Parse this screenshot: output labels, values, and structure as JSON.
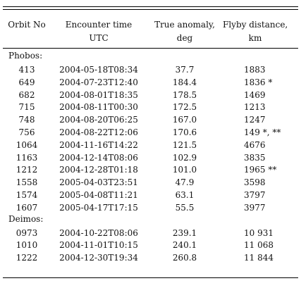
{
  "table": {
    "headers": {
      "orbit": "Orbit No",
      "time_line1": "Encounter time",
      "time_line2": "UTC",
      "anomaly_line1": "True anomaly,",
      "anomaly_line2": "deg",
      "distance_line1": "Flyby distance,",
      "distance_line2": "km"
    },
    "groups": [
      {
        "name": "Phobos:",
        "rows": [
          {
            "orbit": "413",
            "time": "2004-05-18T08:34",
            "anomaly": "37.7",
            "distance": "1883"
          },
          {
            "orbit": "649",
            "time": "2004-07-23T12:40",
            "anomaly": "184.4",
            "distance": "1836 *"
          },
          {
            "orbit": "682",
            "time": "2004-08-01T18:35",
            "anomaly": "178.5",
            "distance": "1469"
          },
          {
            "orbit": "715",
            "time": "2004-08-11T00:30",
            "anomaly": "172.5",
            "distance": "1213"
          },
          {
            "orbit": "748",
            "time": "2004-08-20T06:25",
            "anomaly": "167.0",
            "distance": "1247"
          },
          {
            "orbit": "756",
            "time": "2004-08-22T12:06",
            "anomaly": "170.6",
            "distance": "149 *, **"
          },
          {
            "orbit": "1064",
            "time": "2004-11-16T14:22",
            "anomaly": "121.5",
            "distance": "4676"
          },
          {
            "orbit": "1163",
            "time": "2004-12-14T08:06",
            "anomaly": "102.9",
            "distance": "3835"
          },
          {
            "orbit": "1212",
            "time": "2004-12-28T01:18",
            "anomaly": "101.0",
            "distance": "1965 **"
          },
          {
            "orbit": "1558",
            "time": "2005-04-03T23:51",
            "anomaly": "47.9",
            "distance": "3598"
          },
          {
            "orbit": "1574",
            "time": "2005-04-08T11:21",
            "anomaly": "63.1",
            "distance": "3797"
          },
          {
            "orbit": "1607",
            "time": "2005-04-17T17:15",
            "anomaly": "55.5",
            "distance": "3977"
          }
        ]
      },
      {
        "name": "Deimos:",
        "rows": [
          {
            "orbit": "0973",
            "time": "2004-10-22T08:06",
            "anomaly": "239.1",
            "distance": "10 931"
          },
          {
            "orbit": "1010",
            "time": "2004-11-01T10:15",
            "anomaly": "240.1",
            "distance": "11 068"
          },
          {
            "orbit": "1222",
            "time": "2004-12-30T19:34",
            "anomaly": "260.8",
            "distance": "11 844"
          }
        ]
      }
    ]
  }
}
